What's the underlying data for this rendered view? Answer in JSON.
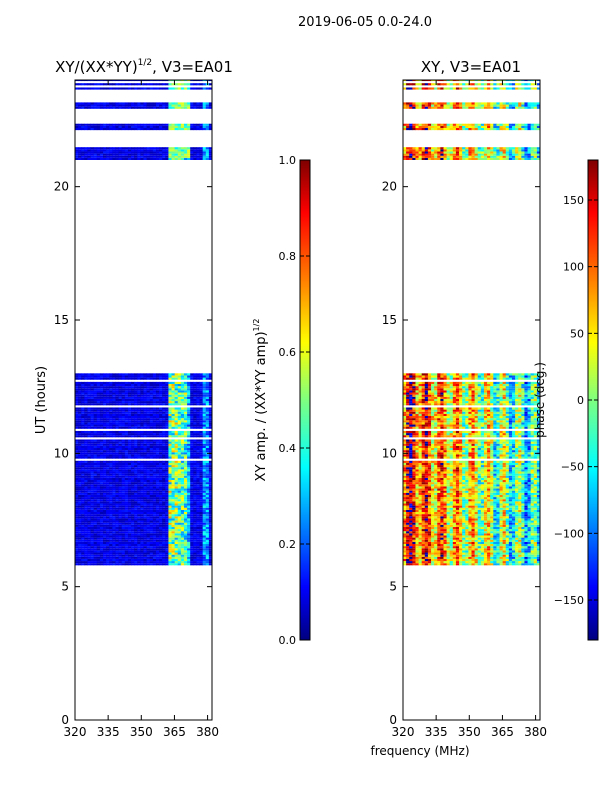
{
  "figure_title": "2019-06-05 0.0-24.0",
  "colors": {
    "jet": [
      "#00007f",
      "#0000ff",
      "#007fff",
      "#00ffff",
      "#7fff7f",
      "#ffff00",
      "#ff7f00",
      "#ff0000",
      "#7f0000"
    ]
  },
  "chart_data": [
    {
      "type": "heatmap",
      "title_main": "XY/(XX*YY)",
      "title_sup": "1/2",
      "title_rest": ", V3=EA01",
      "ylabel": "UT (hours)",
      "xlabel": "",
      "xlim": [
        320,
        382
      ],
      "ylim": [
        0,
        24
      ],
      "xticks": [
        320,
        335,
        350,
        365,
        380
      ],
      "yticks": [
        0,
        5,
        10,
        15,
        20
      ],
      "data_time_ranges": [
        [
          5.8,
          13.0
        ],
        [
          21.0,
          24.0
        ]
      ],
      "gap_bands": [
        [
          21.45,
          22.05
        ],
        [
          22.35,
          22.85
        ],
        [
          23.15,
          23.55
        ],
        [
          23.8,
          23.9
        ]
      ],
      "bright_channels": [
        [
          362,
          366,
          0.55
        ],
        [
          366.5,
          370,
          0.5
        ],
        [
          370,
          372,
          0.35
        ],
        [
          377,
          380,
          0.3
        ]
      ],
      "value_description": "mostly low amplitude (~0.05-0.15), elevated around 362-372 MHz",
      "colorbar": {
        "label_main": "XY amp. / (XX*YY amp)",
        "label_sup": "1/2",
        "range": [
          0.0,
          1.0
        ],
        "ticks": [
          "0.0",
          "0.2",
          "0.4",
          "0.6",
          "0.8",
          "1.0"
        ]
      }
    },
    {
      "type": "heatmap",
      "title_main": "XY, V3=EA01",
      "ylabel": "",
      "xlabel": "frequency (MHz)",
      "xlim": [
        320,
        382
      ],
      "ylim": [
        0,
        24
      ],
      "xticks": [
        320,
        335,
        350,
        365,
        380
      ],
      "yticks": [
        0,
        5,
        10,
        15,
        20
      ],
      "data_time_ranges": [
        [
          5.8,
          13.0
        ],
        [
          21.0,
          24.0
        ]
      ],
      "value_description": "phase varies strongly with frequency: red/yellow stripes near 320-350 MHz, green/blue near 355-382 MHz",
      "colorbar": {
        "label": "phase (deg.)",
        "range": [
          -180,
          180
        ],
        "ticks": [
          "150",
          "100",
          "50",
          "0",
          "−50",
          "−100",
          "−150"
        ]
      }
    }
  ]
}
